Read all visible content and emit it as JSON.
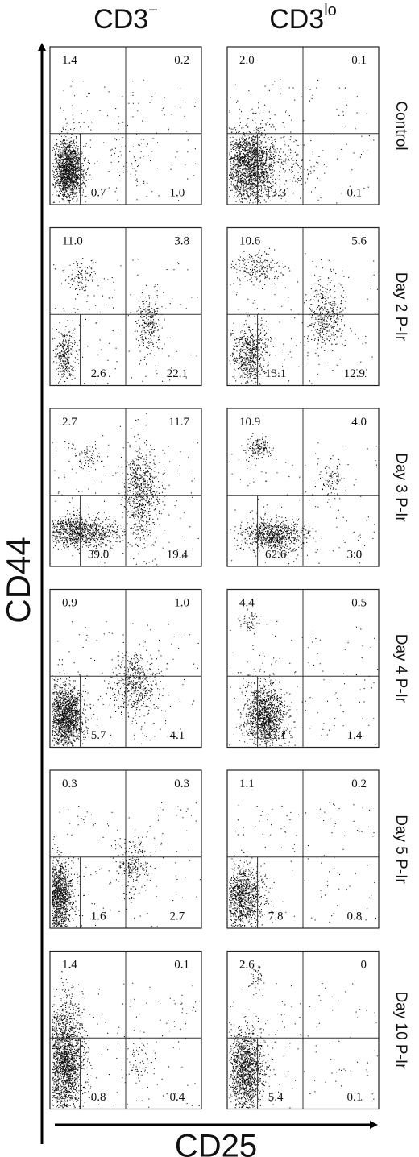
{
  "header": {
    "columns": [
      {
        "base": "CD3",
        "sup": "−"
      },
      {
        "base": "CD3",
        "sup": "lo"
      }
    ]
  },
  "axes": {
    "y_label": "CD44",
    "x_label": "CD25"
  },
  "rows": [
    {
      "label": "Control",
      "panels": [
        [
          "1.4",
          "0.2",
          "0.7",
          "1.0"
        ],
        [
          "2.0",
          "0.1",
          "13.3",
          "0.1"
        ]
      ]
    },
    {
      "label": "Day 2 P-Ir",
      "panels": [
        [
          "11.0",
          "3.8",
          "2.6",
          "22.1"
        ],
        [
          "10.6",
          "5.6",
          "13.1",
          "12.9"
        ]
      ]
    },
    {
      "label": "Day 3 P-Ir",
      "panels": [
        [
          "2.7",
          "11.7",
          "39.0",
          "19.4"
        ],
        [
          "10.9",
          "4.0",
          "62.6",
          "3.0"
        ]
      ]
    },
    {
      "label": "Day 4 P-Ir",
      "panels": [
        [
          "0.9",
          "1.0",
          "5.7",
          "4.1"
        ],
        [
          "4.4",
          "0.5",
          "33.1",
          "1.4"
        ]
      ]
    },
    {
      "label": "Day 5 P-Ir",
      "panels": [
        [
          "0.3",
          "0.3",
          "1.6",
          "2.7"
        ],
        [
          "1.1",
          "0.2",
          "7.8",
          "0.8"
        ]
      ]
    },
    {
      "label": "Day 10 P-Ir",
      "panels": [
        [
          "1.4",
          "0.1",
          "0.8",
          "0.4"
        ],
        [
          "2.6",
          "0",
          "5.4",
          "0.1"
        ]
      ]
    }
  ]
}
